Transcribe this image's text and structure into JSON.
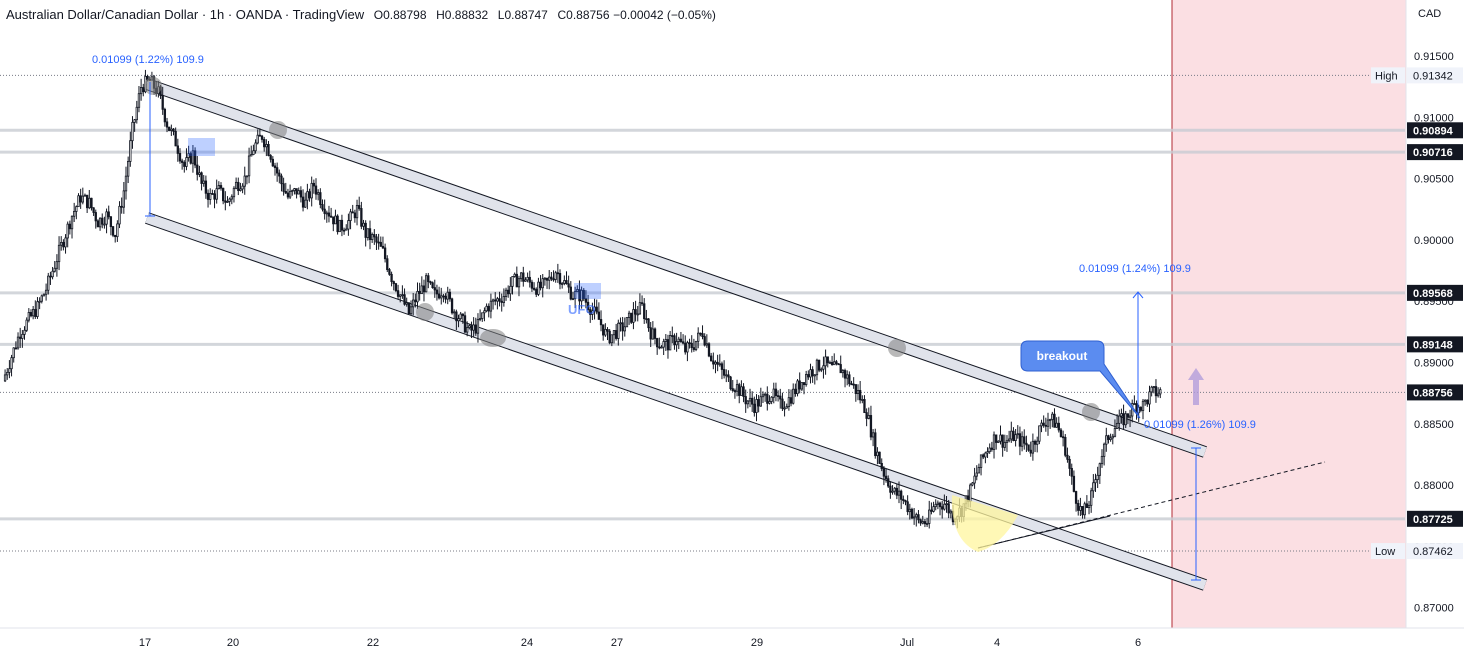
{
  "header": {
    "symbol": "Australian Dollar/Canadian Dollar · 1h · OANDA · TradingView",
    "open": "O0.88798",
    "high": "H0.88832",
    "low": "L0.88747",
    "close": "C0.88756",
    "change": "−0.00042 (−0.05%)"
  },
  "colors": {
    "up": "#131722",
    "down": "#131722",
    "accent": "#2962ff",
    "channel_fill": "#e0e3eb",
    "zone": "#fbdfe3",
    "zone_line": "#b22833",
    "circle": "#808080",
    "ellipse": "#fff59d"
  },
  "chart_data": {
    "type": "candlestick",
    "currency_label": "CAD",
    "ylim": [
      0.8675,
      0.9185
    ],
    "y_ticks": [
      "0.91500",
      "0.91000",
      "0.90500",
      "0.90000",
      "0.89500",
      "0.89000",
      "0.88500",
      "0.88000",
      "0.87500",
      "0.87000"
    ],
    "x_ticks": [
      "17",
      "20",
      "22",
      "24",
      "27",
      "29",
      "Jul",
      "4",
      "6"
    ],
    "price_labels": [
      {
        "label": "High",
        "value": "0.91342",
        "style": "plain"
      },
      {
        "label": "",
        "value": "0.90894",
        "style": "dark"
      },
      {
        "label": "",
        "value": "0.90716",
        "style": "dark"
      },
      {
        "label": "",
        "value": "0.89568",
        "style": "dark"
      },
      {
        "label": "",
        "value": "0.89148",
        "style": "dark"
      },
      {
        "label": "",
        "value": "0.88756",
        "style": "dark"
      },
      {
        "label": "",
        "value": "0.87725",
        "style": "dark"
      },
      {
        "label": "Low",
        "value": "0.87462",
        "style": "plain"
      }
    ],
    "horizontal_levels": [
      0.90894,
      0.90716,
      0.89568,
      0.89148,
      0.87725
    ],
    "dotted_levels": [
      0.91342,
      0.88756,
      0.87462
    ],
    "close_series": [
      0.8885,
      0.8905,
      0.8925,
      0.8935,
      0.8945,
      0.896,
      0.898,
      0.9,
      0.902,
      0.9035,
      0.903,
      0.9015,
      0.902,
      0.9005,
      0.904,
      0.909,
      0.9125,
      0.913,
      0.912,
      0.9095,
      0.908,
      0.906,
      0.907,
      0.9045,
      0.9035,
      0.904,
      0.903,
      0.9045,
      0.905,
      0.9075,
      0.9085,
      0.907,
      0.905,
      0.9035,
      0.904,
      0.903,
      0.9045,
      0.903,
      0.902,
      0.901,
      0.9015,
      0.9025,
      0.9005,
      0.9,
      0.899,
      0.897,
      0.8955,
      0.894,
      0.8955,
      0.8965,
      0.8955,
      0.896,
      0.8945,
      0.8935,
      0.8925,
      0.893,
      0.8945,
      0.895,
      0.8955,
      0.8965,
      0.897,
      0.8965,
      0.896,
      0.8965,
      0.8975,
      0.8965,
      0.8955,
      0.8955,
      0.8945,
      0.8935,
      0.892,
      0.8925,
      0.893,
      0.894,
      0.8945,
      0.8925,
      0.8915,
      0.8915,
      0.892,
      0.891,
      0.8915,
      0.8925,
      0.8905,
      0.8895,
      0.8885,
      0.888,
      0.887,
      0.8865,
      0.887,
      0.8875,
      0.8865,
      0.887,
      0.888,
      0.889,
      0.8895,
      0.89,
      0.8895,
      0.8895,
      0.8885,
      0.8875,
      0.886,
      0.883,
      0.881,
      0.8795,
      0.879,
      0.878,
      0.877,
      0.877,
      0.8785,
      0.8785,
      0.8775,
      0.878,
      0.8795,
      0.8815,
      0.883,
      0.884,
      0.8835,
      0.884,
      0.8835,
      0.883,
      0.8845,
      0.8855,
      0.885,
      0.883,
      0.8795,
      0.8775,
      0.879,
      0.882,
      0.884,
      0.885,
      0.8855,
      0.8865,
      0.8865,
      0.8875,
      0.8876
    ],
    "channel": {
      "upper": {
        "start": [
          "Jun 17",
          0.9135
        ],
        "end": [
          "Jul 6",
          0.8835
        ]
      },
      "lower": {
        "start": [
          "Jun 17",
          0.902
        ],
        "end": [
          "Jul 6",
          0.872
        ]
      }
    },
    "touch_points": [
      "Jun 17",
      "Jun 20",
      "Jun 22",
      "Jun 23",
      "Jun 30",
      "Jul 5"
    ],
    "measurements": [
      {
        "text": "0.01099 (1.22%) 109.9"
      },
      {
        "text": "0.01099 (1.24%) 109.9"
      },
      {
        "text": "0.01099 (1.26%) 109.9"
      }
    ],
    "annotations": {
      "breakout": "breakout",
      "ufo": "UFO"
    }
  }
}
